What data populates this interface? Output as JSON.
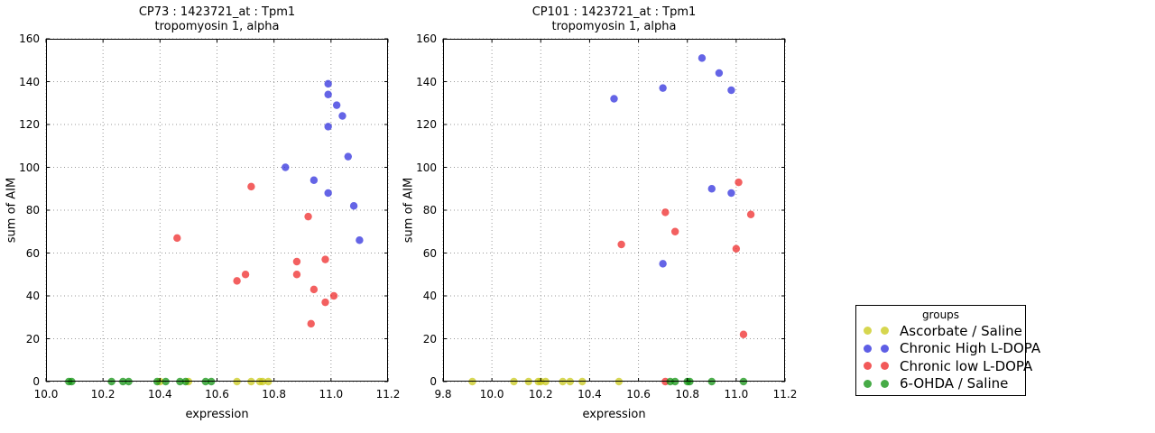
{
  "colors": {
    "yellow": "#c8c814",
    "blue": "#2828dc",
    "red": "#ee2222",
    "green": "#0a8f0a",
    "grid": "#999999",
    "frame": "#000000"
  },
  "legend": {
    "title": "groups",
    "items": [
      {
        "label": "Ascorbate / Saline",
        "color": "yellow"
      },
      {
        "label": "Chronic High L-DOPA",
        "color": "blue"
      },
      {
        "label": "Chronic low L-DOPA",
        "color": "red"
      },
      {
        "label": "6-OHDA / Saline",
        "color": "green"
      }
    ]
  },
  "chart_data": [
    {
      "type": "scatter",
      "title": "CP73 : 1423721_at : Tpm1",
      "subtitle": "tropomyosin 1, alpha",
      "xlabel": "expression",
      "ylabel": "sum of AIM",
      "xlim": [
        10.0,
        11.2
      ],
      "ylim": [
        0,
        160
      ],
      "grid": true,
      "xticks": [
        10.0,
        10.2,
        10.4,
        10.6,
        10.8,
        11.0,
        11.2
      ],
      "xtick_labels": [
        "10.0",
        "10.2",
        "10.4",
        "10.6",
        "10.8",
        "11.0",
        "11.2"
      ],
      "yticks": [
        0,
        20,
        40,
        60,
        80,
        100,
        120,
        140,
        160
      ],
      "ytick_labels": [
        "0",
        "20",
        "40",
        "60",
        "80",
        "100",
        "120",
        "140",
        "160"
      ],
      "series": [
        {
          "name": "Ascorbate / Saline",
          "color": "yellow",
          "points": [
            [
              10.4,
              0
            ],
            [
              10.5,
              0
            ],
            [
              10.67,
              0
            ],
            [
              10.72,
              0
            ],
            [
              10.75,
              0
            ],
            [
              10.76,
              0
            ],
            [
              10.78,
              0
            ]
          ]
        },
        {
          "name": "Chronic High L-DOPA",
          "color": "blue",
          "points": [
            [
              10.84,
              100
            ],
            [
              10.94,
              94
            ],
            [
              10.99,
              139
            ],
            [
              10.99,
              134
            ],
            [
              10.99,
              119
            ],
            [
              10.99,
              88
            ],
            [
              11.02,
              129
            ],
            [
              11.04,
              124
            ],
            [
              11.06,
              105
            ],
            [
              11.08,
              82
            ],
            [
              11.1,
              66
            ]
          ]
        },
        {
          "name": "Chronic low L-DOPA",
          "color": "red",
          "points": [
            [
              10.46,
              67
            ],
            [
              10.67,
              47
            ],
            [
              10.7,
              50
            ],
            [
              10.72,
              91
            ],
            [
              10.88,
              56
            ],
            [
              10.88,
              50
            ],
            [
              10.92,
              77
            ],
            [
              10.93,
              27
            ],
            [
              10.94,
              43
            ],
            [
              10.98,
              57
            ],
            [
              10.98,
              37
            ],
            [
              11.01,
              40
            ]
          ]
        },
        {
          "name": "6-OHDA / Saline",
          "color": "green",
          "points": [
            [
              10.08,
              0
            ],
            [
              10.09,
              0
            ],
            [
              10.23,
              0
            ],
            [
              10.27,
              0
            ],
            [
              10.29,
              0
            ],
            [
              10.39,
              0
            ],
            [
              10.42,
              0
            ],
            [
              10.47,
              0
            ],
            [
              10.49,
              0
            ],
            [
              10.56,
              0
            ],
            [
              10.58,
              0
            ]
          ]
        }
      ]
    },
    {
      "type": "scatter",
      "title": "CP101 : 1423721_at : Tpm1",
      "subtitle": "tropomyosin 1, alpha",
      "xlabel": "expression",
      "ylabel": "sum of AIM",
      "xlim": [
        9.8,
        11.2
      ],
      "ylim": [
        0,
        160
      ],
      "grid": true,
      "xticks": [
        9.8,
        10.0,
        10.2,
        10.4,
        10.6,
        10.8,
        11.0,
        11.2
      ],
      "xtick_labels": [
        "9.8",
        "10.0",
        "10.2",
        "10.4",
        "10.6",
        "10.8",
        "11.0",
        "11.2"
      ],
      "yticks": [
        0,
        20,
        40,
        60,
        80,
        100,
        120,
        140,
        160
      ],
      "ytick_labels": [
        "0",
        "20",
        "40",
        "60",
        "80",
        "100",
        "120",
        "140",
        "160"
      ],
      "series": [
        {
          "name": "Ascorbate / Saline",
          "color": "yellow",
          "points": [
            [
              9.92,
              0
            ],
            [
              10.09,
              0
            ],
            [
              10.15,
              0
            ],
            [
              10.19,
              0
            ],
            [
              10.2,
              0
            ],
            [
              10.22,
              0
            ],
            [
              10.29,
              0
            ],
            [
              10.32,
              0
            ],
            [
              10.37,
              0
            ],
            [
              10.52,
              0
            ]
          ]
        },
        {
          "name": "Chronic High L-DOPA",
          "color": "blue",
          "points": [
            [
              10.5,
              132
            ],
            [
              10.7,
              137
            ],
            [
              10.7,
              55
            ],
            [
              10.86,
              151
            ],
            [
              10.9,
              90
            ],
            [
              10.93,
              144
            ],
            [
              10.98,
              136
            ],
            [
              10.98,
              88
            ]
          ]
        },
        {
          "name": "Chronic low L-DOPA",
          "color": "red",
          "points": [
            [
              10.53,
              64
            ],
            [
              10.71,
              79
            ],
            [
              10.71,
              0
            ],
            [
              10.75,
              70
            ],
            [
              11.0,
              62
            ],
            [
              11.01,
              93
            ],
            [
              11.03,
              22
            ],
            [
              11.06,
              78
            ]
          ]
        },
        {
          "name": "6-OHDA / Saline",
          "color": "green",
          "points": [
            [
              10.73,
              0
            ],
            [
              10.75,
              0
            ],
            [
              10.8,
              0
            ],
            [
              10.81,
              0
            ],
            [
              10.9,
              0
            ],
            [
              11.03,
              0
            ]
          ]
        }
      ]
    }
  ]
}
